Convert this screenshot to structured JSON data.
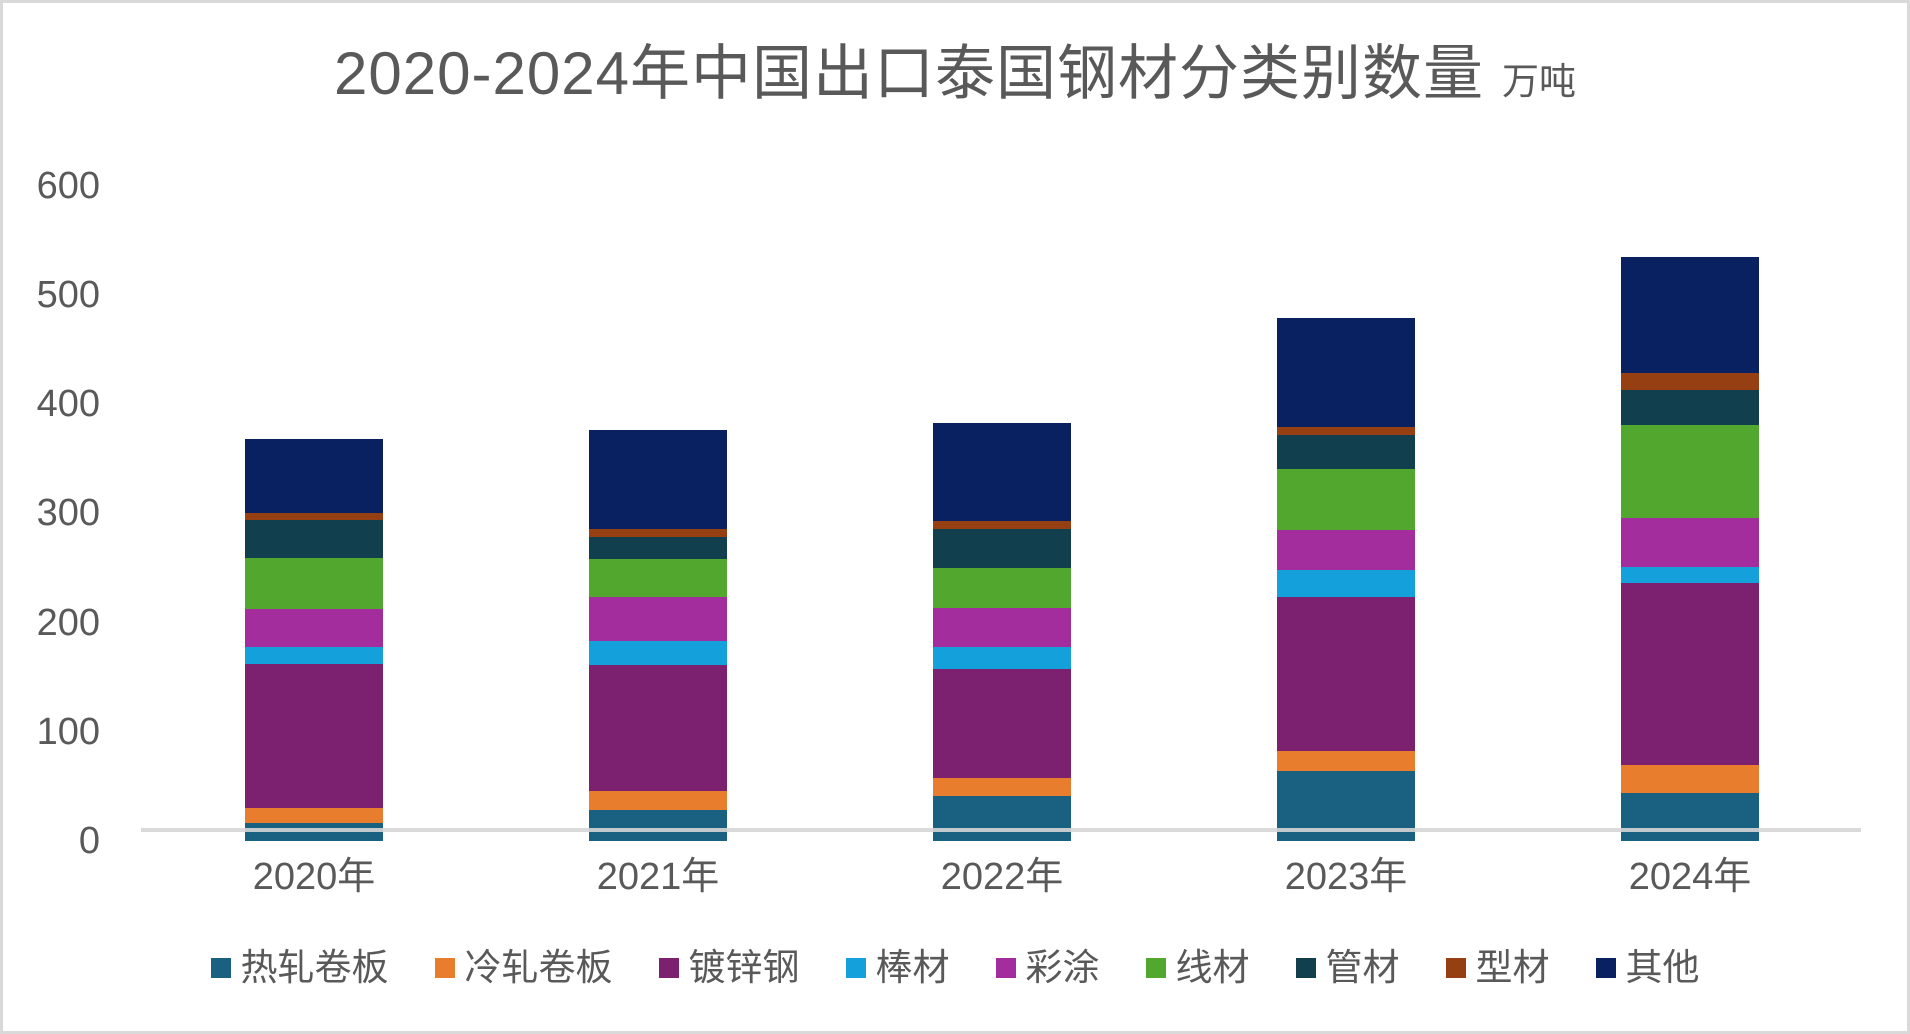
{
  "title": {
    "text": "2020-2024年中国出口泰国钢材分类别数量",
    "unit": "万吨"
  },
  "y_axis": {
    "tick_labels": [
      "600",
      "500",
      "400",
      "300",
      "200",
      "100",
      "0"
    ],
    "min": 0,
    "max": 600,
    "step": 100
  },
  "x_axis": {
    "categories": [
      "2020年",
      "2021年",
      "2022年",
      "2023年",
      "2024年"
    ]
  },
  "colors": {
    "label_gray": "#595959",
    "axis_line_gray": "#d6d6d6"
  },
  "chart_data": {
    "type": "bar",
    "stacked": true,
    "title": "2020-2024年中国出口泰国钢材分类别数量",
    "unit_label": "万吨",
    "xlabel": "",
    "ylabel": "",
    "ylim": [
      0,
      600
    ],
    "grid": false,
    "legend_position": "bottom",
    "categories": [
      "2020年",
      "2021年",
      "2022年",
      "2023年",
      "2024年"
    ],
    "series": [
      {
        "name": "热轧卷板",
        "color": "#1A6080",
        "values": [
          16,
          28,
          41,
          64,
          44
        ]
      },
      {
        "name": "冷轧卷板",
        "color": "#E87D2E",
        "values": [
          14,
          18,
          17,
          18,
          26
        ]
      },
      {
        "name": "镀锌钢",
        "color": "#7B2170",
        "values": [
          132,
          115,
          99,
          141,
          166
        ]
      },
      {
        "name": "棒材",
        "color": "#14A0DB",
        "values": [
          16,
          22,
          21,
          25,
          15
        ]
      },
      {
        "name": "彩涂",
        "color": "#A42D9D",
        "values": [
          34,
          40,
          35,
          37,
          45
        ]
      },
      {
        "name": "线材",
        "color": "#52A82F",
        "values": [
          47,
          35,
          37,
          56,
          85
        ]
      },
      {
        "name": "管材",
        "color": "#123F4E",
        "values": [
          35,
          20,
          36,
          31,
          32
        ]
      },
      {
        "name": "型材",
        "color": "#953F12",
        "values": [
          6,
          8,
          7,
          7,
          16
        ]
      },
      {
        "name": "其他",
        "color": "#0A2161",
        "values": [
          68,
          90,
          90,
          100,
          106
        ]
      }
    ],
    "totals": [
      368,
      376,
      383,
      479,
      535
    ]
  }
}
